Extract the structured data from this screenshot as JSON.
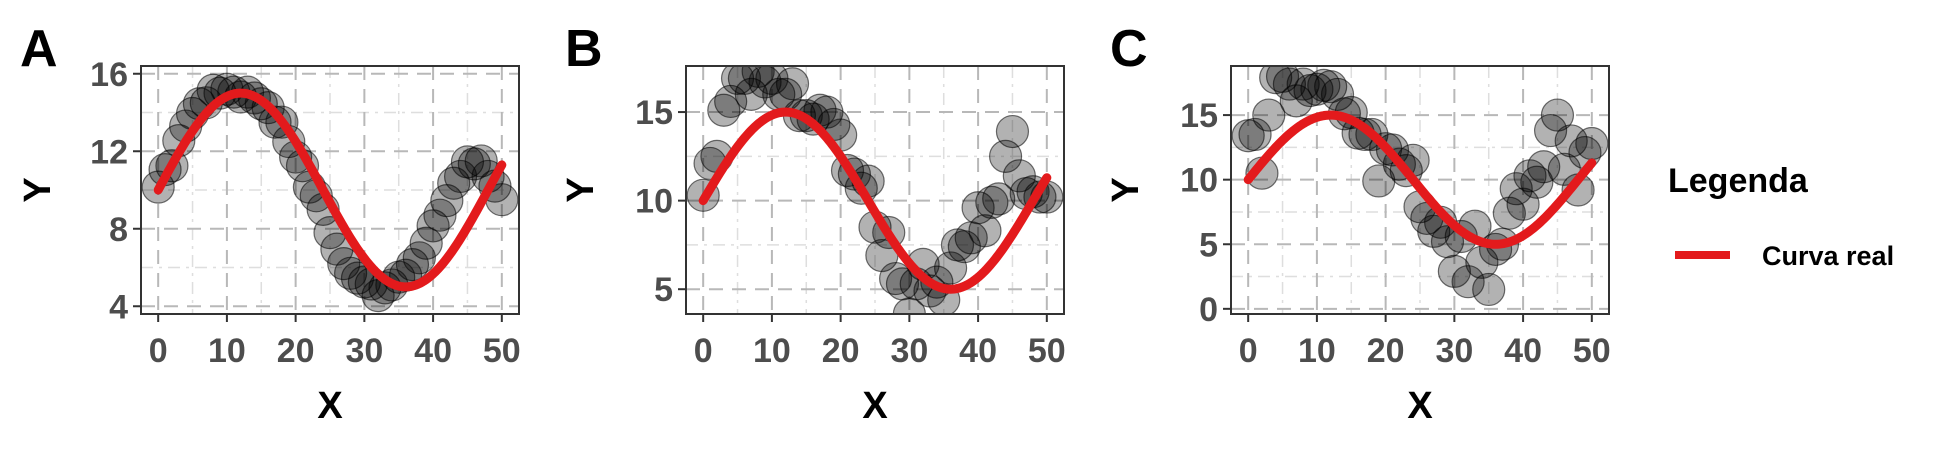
{
  "colors": {
    "curve": "#e31a1c",
    "points_fill": "rgba(0,0,0,0.30)",
    "points_stroke": "rgba(0,0,0,0.55)",
    "grid_major": "#b8b8b8",
    "grid_minor": "#dedede",
    "panel_border": "#333333"
  },
  "legend": {
    "title": "Legenda",
    "items": [
      {
        "label": "Curva real",
        "color": "#e31a1c"
      }
    ]
  },
  "chart_data": [
    {
      "panel": "A",
      "type": "scatter",
      "xlabel": "X",
      "ylabel": "Y",
      "xlim": [
        -2.5,
        52.5
      ],
      "ylim": [
        3.6,
        16.4
      ],
      "xticks": [
        0,
        10,
        20,
        30,
        40,
        50
      ],
      "yticks": [
        4,
        8,
        12,
        16
      ],
      "noise_sd": 0.5,
      "x": [
        0.0,
        1.0,
        2.0,
        3.0,
        4.0,
        5.0,
        6.0,
        7.0,
        8.0,
        9.0,
        10.0,
        11.0,
        12.0,
        13.0,
        14.0,
        15.0,
        16.0,
        17.0,
        18.0,
        19.0,
        20.0,
        21.0,
        22.0,
        23.0,
        24.0,
        25.0,
        26.0,
        27.0,
        28.0,
        29.0,
        30.0,
        31.0,
        32.0,
        33.0,
        34.0,
        35.0,
        36.0,
        37.0,
        38.0,
        39.0,
        40.0,
        41.0,
        42.0,
        43.0,
        44.0,
        45.0,
        46.0,
        47.0,
        48.0,
        49.0,
        50.0
      ],
      "y": [
        10.15,
        11.05,
        11.25,
        12.55,
        13.3,
        13.95,
        14.45,
        14.5,
        15.15,
        15.0,
        15.2,
        15.05,
        14.8,
        15.05,
        14.75,
        14.45,
        14.25,
        13.5,
        13.5,
        12.5,
        11.7,
        11.25,
        10.15,
        9.7,
        9.0,
        7.8,
        6.95,
        6.2,
        5.7,
        5.45,
        5.25,
        5.15,
        4.55,
        4.95,
        5.1,
        5.5,
        5.6,
        6.15,
        6.5,
        7.25,
        8.15,
        8.7,
        9.45,
        10.35,
        10.7,
        11.45,
        11.35,
        11.5,
        10.7,
        10.2,
        9.5
      ],
      "curve": {
        "label": "Curva real",
        "x_start": 0,
        "x_end": 50,
        "expr": "Y = 10 + 5 * sin(2*pi*X/48)"
      }
    },
    {
      "panel": "B",
      "type": "scatter",
      "xlabel": "X",
      "ylabel": "Y",
      "xlim": [
        -2.5,
        52.5
      ],
      "ylim": [
        3.6,
        17.6
      ],
      "xticks": [
        0,
        10,
        20,
        30,
        40,
        50
      ],
      "yticks": [
        5,
        10,
        15
      ],
      "noise_sd": 1.0,
      "x": [
        0.0,
        1.0,
        2.0,
        3.0,
        4.0,
        5.0,
        6.0,
        7.0,
        8.0,
        9.0,
        10.0,
        11.0,
        12.0,
        13.0,
        14.0,
        15.0,
        16.0,
        17.0,
        18.0,
        19.0,
        20.0,
        21.0,
        22.0,
        23.0,
        24.0,
        25.0,
        26.0,
        27.0,
        28.0,
        29.0,
        30.0,
        31.0,
        32.0,
        33.0,
        34.0,
        35.0,
        36.0,
        37.0,
        38.0,
        39.0,
        40.0,
        41.0,
        42.0,
        43.0,
        44.0,
        45.0,
        46.0,
        47.0,
        48.0,
        49.0,
        50.0
      ],
      "y": [
        10.3,
        12.1,
        12.5,
        15.1,
        15.6,
        16.9,
        16.9,
        16.0,
        17.3,
        16.7,
        16.9,
        16.0,
        16.0,
        16.6,
        14.8,
        14.8,
        14.6,
        15.1,
        15.0,
        14.3,
        13.7,
        11.7,
        11.5,
        10.7,
        11.1,
        8.5,
        6.9,
        8.2,
        5.6,
        5.3,
        3.6,
        5.3,
        6.4,
        4.9,
        5.4,
        4.4,
        6.2,
        7.5,
        7.4,
        7.9,
        9.6,
        8.3,
        9.9,
        10.1,
        12.5,
        13.9,
        11.4,
        10.4,
        10.5,
        10.2,
        10.2
      ],
      "curve": {
        "label": "Curva real",
        "x_start": 0,
        "x_end": 50,
        "expr": "Y = 10 + 5 * sin(2*pi*X/48)"
      }
    },
    {
      "panel": "C",
      "type": "scatter",
      "xlabel": "X",
      "ylabel": "Y",
      "xlim": [
        -2.5,
        52.5
      ],
      "ylim": [
        -0.4,
        18.8
      ],
      "xticks": [
        0,
        10,
        20,
        30,
        40,
        50
      ],
      "yticks": [
        0,
        5,
        10,
        15
      ],
      "noise_sd": 2.0,
      "x": [
        0.0,
        1.0,
        2.0,
        3.0,
        4.0,
        5.0,
        6.0,
        7.0,
        8.0,
        9.0,
        10.0,
        11.0,
        12.0,
        13.0,
        14.0,
        15.0,
        16.0,
        17.0,
        18.0,
        19.0,
        20.0,
        21.0,
        22.0,
        23.0,
        24.0,
        25.0,
        26.0,
        27.0,
        28.0,
        29.0,
        30.0,
        31.0,
        32.0,
        33.0,
        34.0,
        35.0,
        36.0,
        37.0,
        38.0,
        39.0,
        40.0,
        41.0,
        42.0,
        43.0,
        44.0,
        45.0,
        46.0,
        47.0,
        48.0,
        49.0,
        50.0
      ],
      "y": [
        13.4,
        13.5,
        10.5,
        15.0,
        17.9,
        18.0,
        17.4,
        16.1,
        17.4,
        16.9,
        17.0,
        17.3,
        17.2,
        16.6,
        15.1,
        15.2,
        13.6,
        13.5,
        13.5,
        9.9,
        12.4,
        12.3,
        11.2,
        10.7,
        11.5,
        7.9,
        7.0,
        6.0,
        6.7,
        5.2,
        2.9,
        5.6,
        2.1,
        6.4,
        3.6,
        1.5,
        4.6,
        5.0,
        7.4,
        9.3,
        8.1,
        10.3,
        9.8,
        11.0,
        13.8,
        15.0,
        10.8,
        13.0,
        9.2,
        12.1,
        12.8
      ],
      "curve": {
        "label": "Curva real",
        "x_start": 0,
        "x_end": 50,
        "expr": "Y = 10 + 5 * sin(2*pi*X/48)"
      }
    }
  ]
}
